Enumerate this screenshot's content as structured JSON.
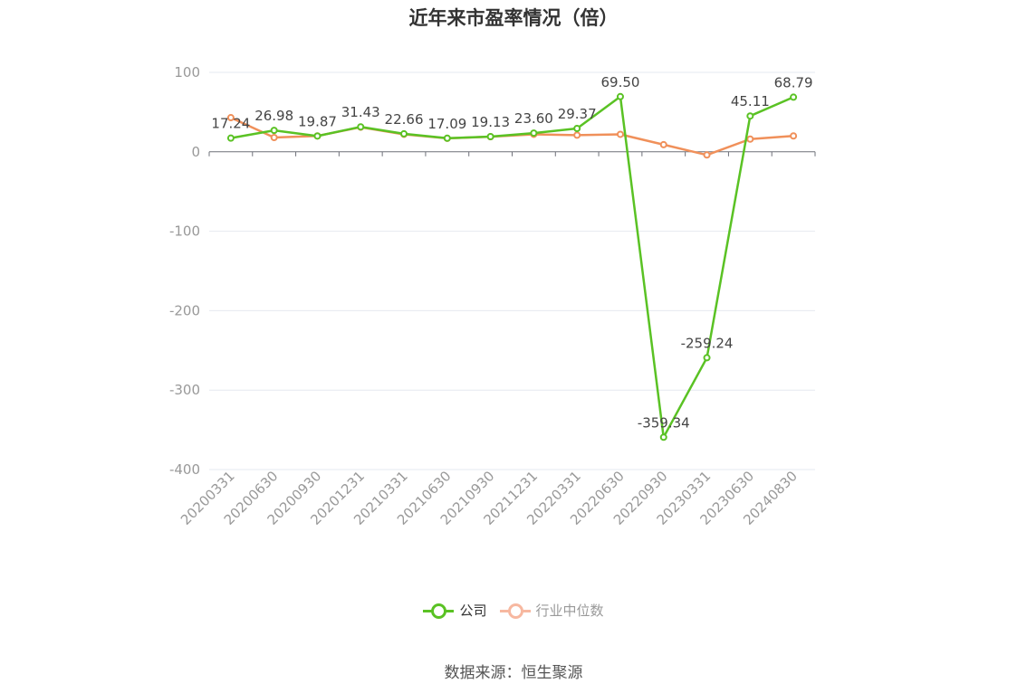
{
  "title": "近年来市盈率情况（倍）",
  "source": "数据来源：恒生聚源",
  "legend": {
    "company": "公司",
    "industry": "行业中位数"
  },
  "colors": {
    "company": "#5ac224",
    "industry": "#f0905a",
    "industry_legend": "#f7b8a0"
  },
  "chart_data": {
    "type": "line",
    "title": "近年来市盈率情况（倍）",
    "categories": [
      "20200331",
      "20200630",
      "20200930",
      "20201231",
      "20210331",
      "20210630",
      "20210930",
      "20211231",
      "20220331",
      "20220630",
      "20220930",
      "20230331",
      "20230630",
      "20240830"
    ],
    "ylim": [
      -400,
      100
    ],
    "yticks": [
      100,
      0,
      -100,
      -200,
      -300,
      -400
    ],
    "grid": true,
    "legend_position": "bottom",
    "series": [
      {
        "name": "公司",
        "values": [
          17.24,
          26.98,
          19.87,
          31.43,
          22.66,
          17.09,
          19.13,
          23.6,
          29.37,
          69.5,
          -359.34,
          -259.24,
          45.11,
          68.79
        ],
        "labels": [
          "17.24",
          "26.98",
          "19.87",
          "31.43",
          "22.66",
          "17.09",
          "19.13",
          "23.60",
          "29.37",
          "69.50",
          "-359.34",
          "-259.24",
          "45.11",
          "68.79"
        ]
      },
      {
        "name": "行业中位数",
        "values": [
          43,
          18,
          20,
          31,
          22,
          17,
          19,
          22,
          21,
          22,
          9,
          -4,
          16,
          20
        ]
      }
    ]
  }
}
